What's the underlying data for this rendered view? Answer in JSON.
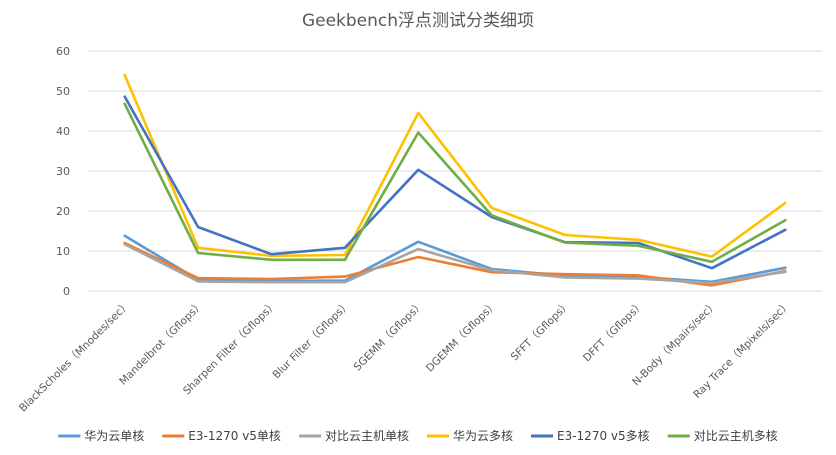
{
  "chart_data": {
    "type": "line",
    "title": "Geekbench浮点测试分类细项",
    "xlabel": "",
    "ylabel": "",
    "ylim": [
      0,
      60
    ],
    "yticks": [
      "0",
      "10",
      "20",
      "30",
      "40",
      "50",
      "60"
    ],
    "grid": true,
    "legend_position": "bottom",
    "categories": [
      "BlackScholes（Mnodes/sec）",
      "Mandelbrot（Gflops）",
      "Sharpen Filter（Gflops）",
      "Blur Filter（Gflops）",
      "SGEMM（Gflops）",
      "DGEMM（Gflops）",
      "SFFT（Gflops）",
      "DFFT（Gflops）",
      "N-Body（Mpairs/sec）",
      "Ray Trace（Mpixels/sec）"
    ],
    "series": [
      {
        "name": "华为云单核",
        "color": "#5b9bd5",
        "values": [
          13.8,
          2.8,
          2.5,
          2.6,
          12.3,
          5.5,
          3.8,
          3.5,
          2.3,
          5.8
        ]
      },
      {
        "name": "E3-1270 v5单核",
        "color": "#ed7d31",
        "values": [
          12.0,
          3.2,
          3.0,
          3.6,
          8.5,
          4.7,
          4.2,
          3.9,
          1.4,
          5.0
        ]
      },
      {
        "name": "对比云主机单核",
        "color": "#a5a5a5",
        "values": [
          11.7,
          2.4,
          2.2,
          2.2,
          10.5,
          5.2,
          3.4,
          3.1,
          2.0,
          4.8
        ]
      },
      {
        "name": "华为云多核",
        "color": "#ffc000",
        "values": [
          54.0,
          10.8,
          8.8,
          9.0,
          44.5,
          20.8,
          14.0,
          12.8,
          8.6,
          22.0
        ]
      },
      {
        "name": "E3-1270 v5多核",
        "color": "#4472c4",
        "values": [
          48.6,
          16.0,
          9.2,
          10.8,
          30.3,
          18.5,
          12.2,
          12.0,
          5.7,
          15.3
        ]
      },
      {
        "name": "对比云主机多核",
        "color": "#70ad47",
        "values": [
          46.8,
          9.5,
          7.8,
          7.8,
          39.6,
          18.9,
          12.1,
          11.3,
          7.3,
          17.7
        ]
      }
    ]
  }
}
